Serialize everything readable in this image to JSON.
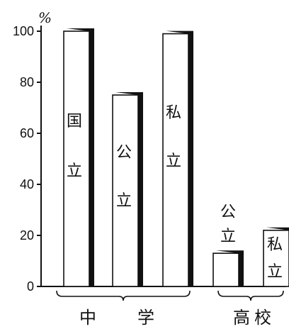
{
  "chart_data": {
    "type": "bar",
    "unit_label": "%",
    "ylim": [
      0,
      100
    ],
    "yticks": [
      0,
      20,
      40,
      60,
      80,
      100
    ],
    "grid": false,
    "bars": [
      {
        "group": "中学",
        "label": "国立",
        "value": 100
      },
      {
        "group": "中学",
        "label": "公立",
        "value": 75
      },
      {
        "group": "中学",
        "label": "私立",
        "value": 99
      },
      {
        "group": "高校",
        "label": "公立",
        "value": 13
      },
      {
        "group": "高校",
        "label": "私立",
        "value": 22
      }
    ],
    "groups": [
      {
        "name": "中　学",
        "chars": [
          "中",
          "学"
        ]
      },
      {
        "name": "高校",
        "chars": [
          "高",
          "校"
        ]
      }
    ],
    "colors": {
      "bar_fill": "#ffffff",
      "bar_shadow": "#111111",
      "axis": "#111111"
    }
  }
}
